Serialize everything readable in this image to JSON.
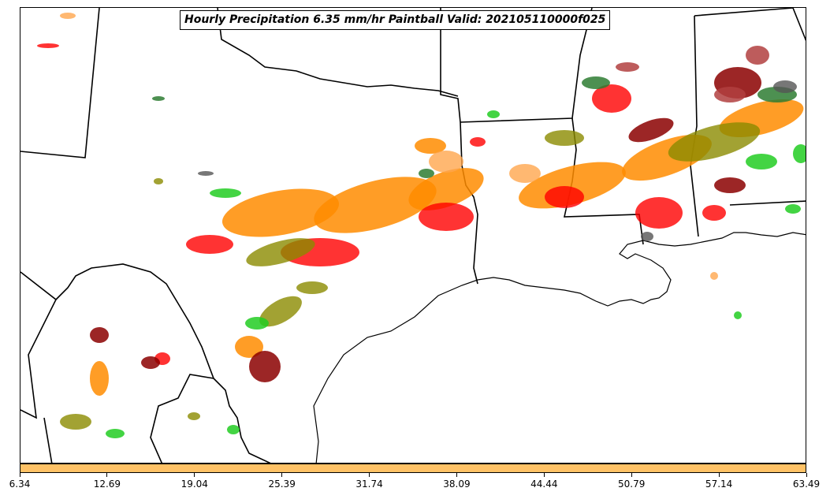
{
  "title": "Hourly Precipitation 6.35 mm/hr Paintball Valid: 202105110000f025",
  "colorbar": {
    "color": "#ffc266",
    "ticks": [
      "6.34",
      "12.69",
      "19.04",
      "25.39",
      "31.74",
      "38.09",
      "44.44",
      "50.79",
      "57.14",
      "63.49"
    ]
  },
  "colors": {
    "orange": "#ff8c00",
    "red": "#ff0000",
    "dark_red": "#8b0000",
    "olive": "#8b8b00",
    "green": "#22cc22",
    "dark_green": "#2e7d32",
    "gray": "#555555",
    "light_orange": "#ffa64d",
    "brown_red": "#b24040"
  }
}
